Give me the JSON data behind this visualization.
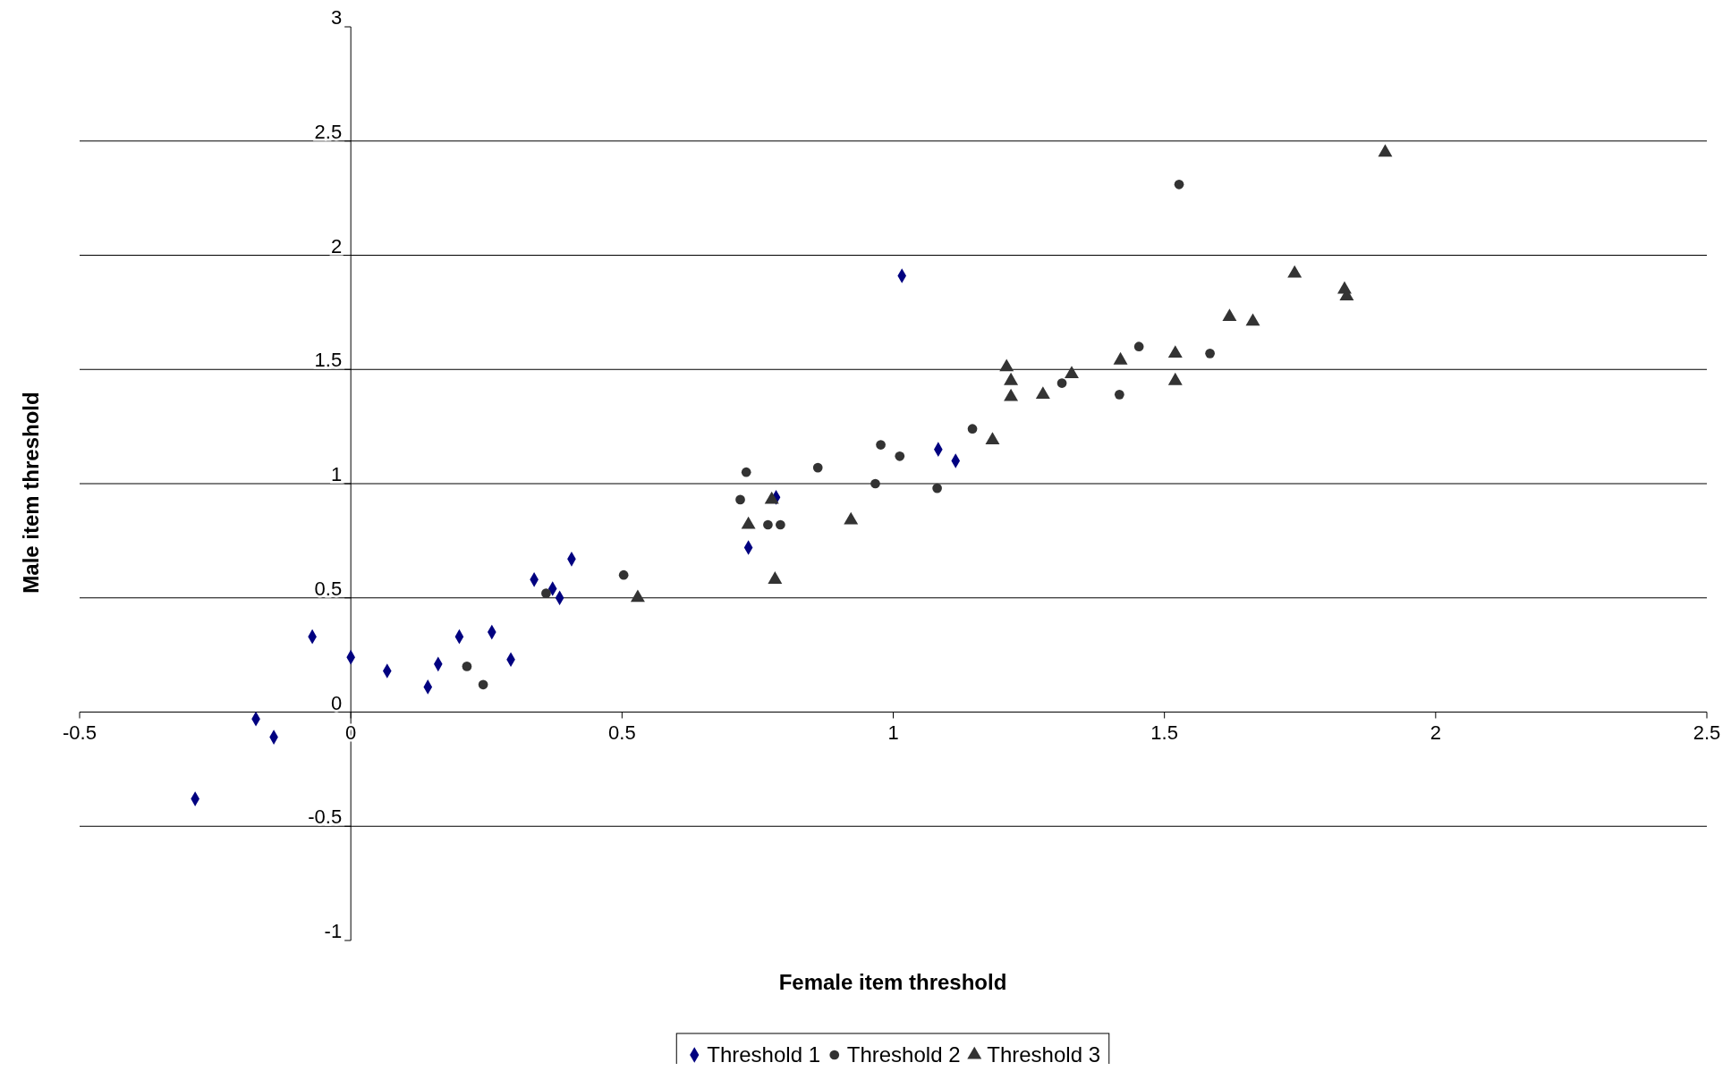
{
  "chart_data": {
    "type": "scatter",
    "xlabel": "Female item threshold",
    "ylabel": "Male item threshold",
    "xlim": [
      -0.5,
      2.5
    ],
    "xticks": [
      -0.5,
      0,
      0.5,
      1,
      1.5,
      2,
      2.5
    ],
    "ylim": [
      -1,
      3
    ],
    "yticks": [
      -1,
      -0.5,
      0,
      0.5,
      1,
      1.5,
      2,
      2.5,
      3
    ],
    "grid": "y",
    "legend": "bottom",
    "series": [
      {
        "name": "Threshold 1",
        "color": "#000080",
        "marker": "diamond",
        "x": [
          -0.287,
          -0.175,
          -0.142,
          -0.071,
          0.0,
          0.067,
          0.142,
          0.161,
          0.2,
          0.26,
          0.295,
          0.338,
          0.372,
          0.385,
          0.407,
          0.733,
          0.784,
          1.016,
          1.083,
          1.115
        ],
        "values": [
          -0.38,
          -0.03,
          -0.11,
          0.33,
          0.24,
          0.18,
          0.11,
          0.21,
          0.33,
          0.35,
          0.23,
          0.58,
          0.54,
          0.5,
          0.67,
          0.72,
          0.94,
          1.91,
          1.15,
          1.1
        ]
      },
      {
        "name": "Threshold 2",
        "color": "#333333",
        "marker": "circle",
        "x": [
          0.214,
          0.244,
          0.36,
          0.503,
          0.718,
          0.729,
          0.769,
          0.792,
          0.861,
          0.967,
          0.977,
          1.012,
          1.081,
          1.146,
          1.311,
          1.417,
          1.453,
          1.527,
          1.584
        ],
        "values": [
          0.2,
          0.12,
          0.52,
          0.6,
          0.93,
          1.05,
          0.82,
          0.82,
          1.07,
          1.0,
          1.17,
          1.12,
          0.98,
          1.24,
          1.44,
          1.39,
          1.6,
          2.31,
          1.57
        ]
      },
      {
        "name": "Threshold 3",
        "color": "#333333",
        "marker": "triangle",
        "x": [
          0.529,
          0.733,
          0.776,
          0.782,
          0.922,
          1.183,
          1.209,
          1.217,
          1.217,
          1.276,
          1.329,
          1.419,
          1.52,
          1.52,
          1.62,
          1.663,
          1.74,
          1.832,
          1.836,
          1.907
        ],
        "values": [
          0.5,
          0.82,
          0.93,
          0.58,
          0.84,
          1.19,
          1.51,
          1.45,
          1.38,
          1.39,
          1.48,
          1.54,
          1.57,
          1.45,
          1.73,
          1.71,
          1.92,
          1.85,
          1.82,
          2.45
        ]
      }
    ]
  }
}
